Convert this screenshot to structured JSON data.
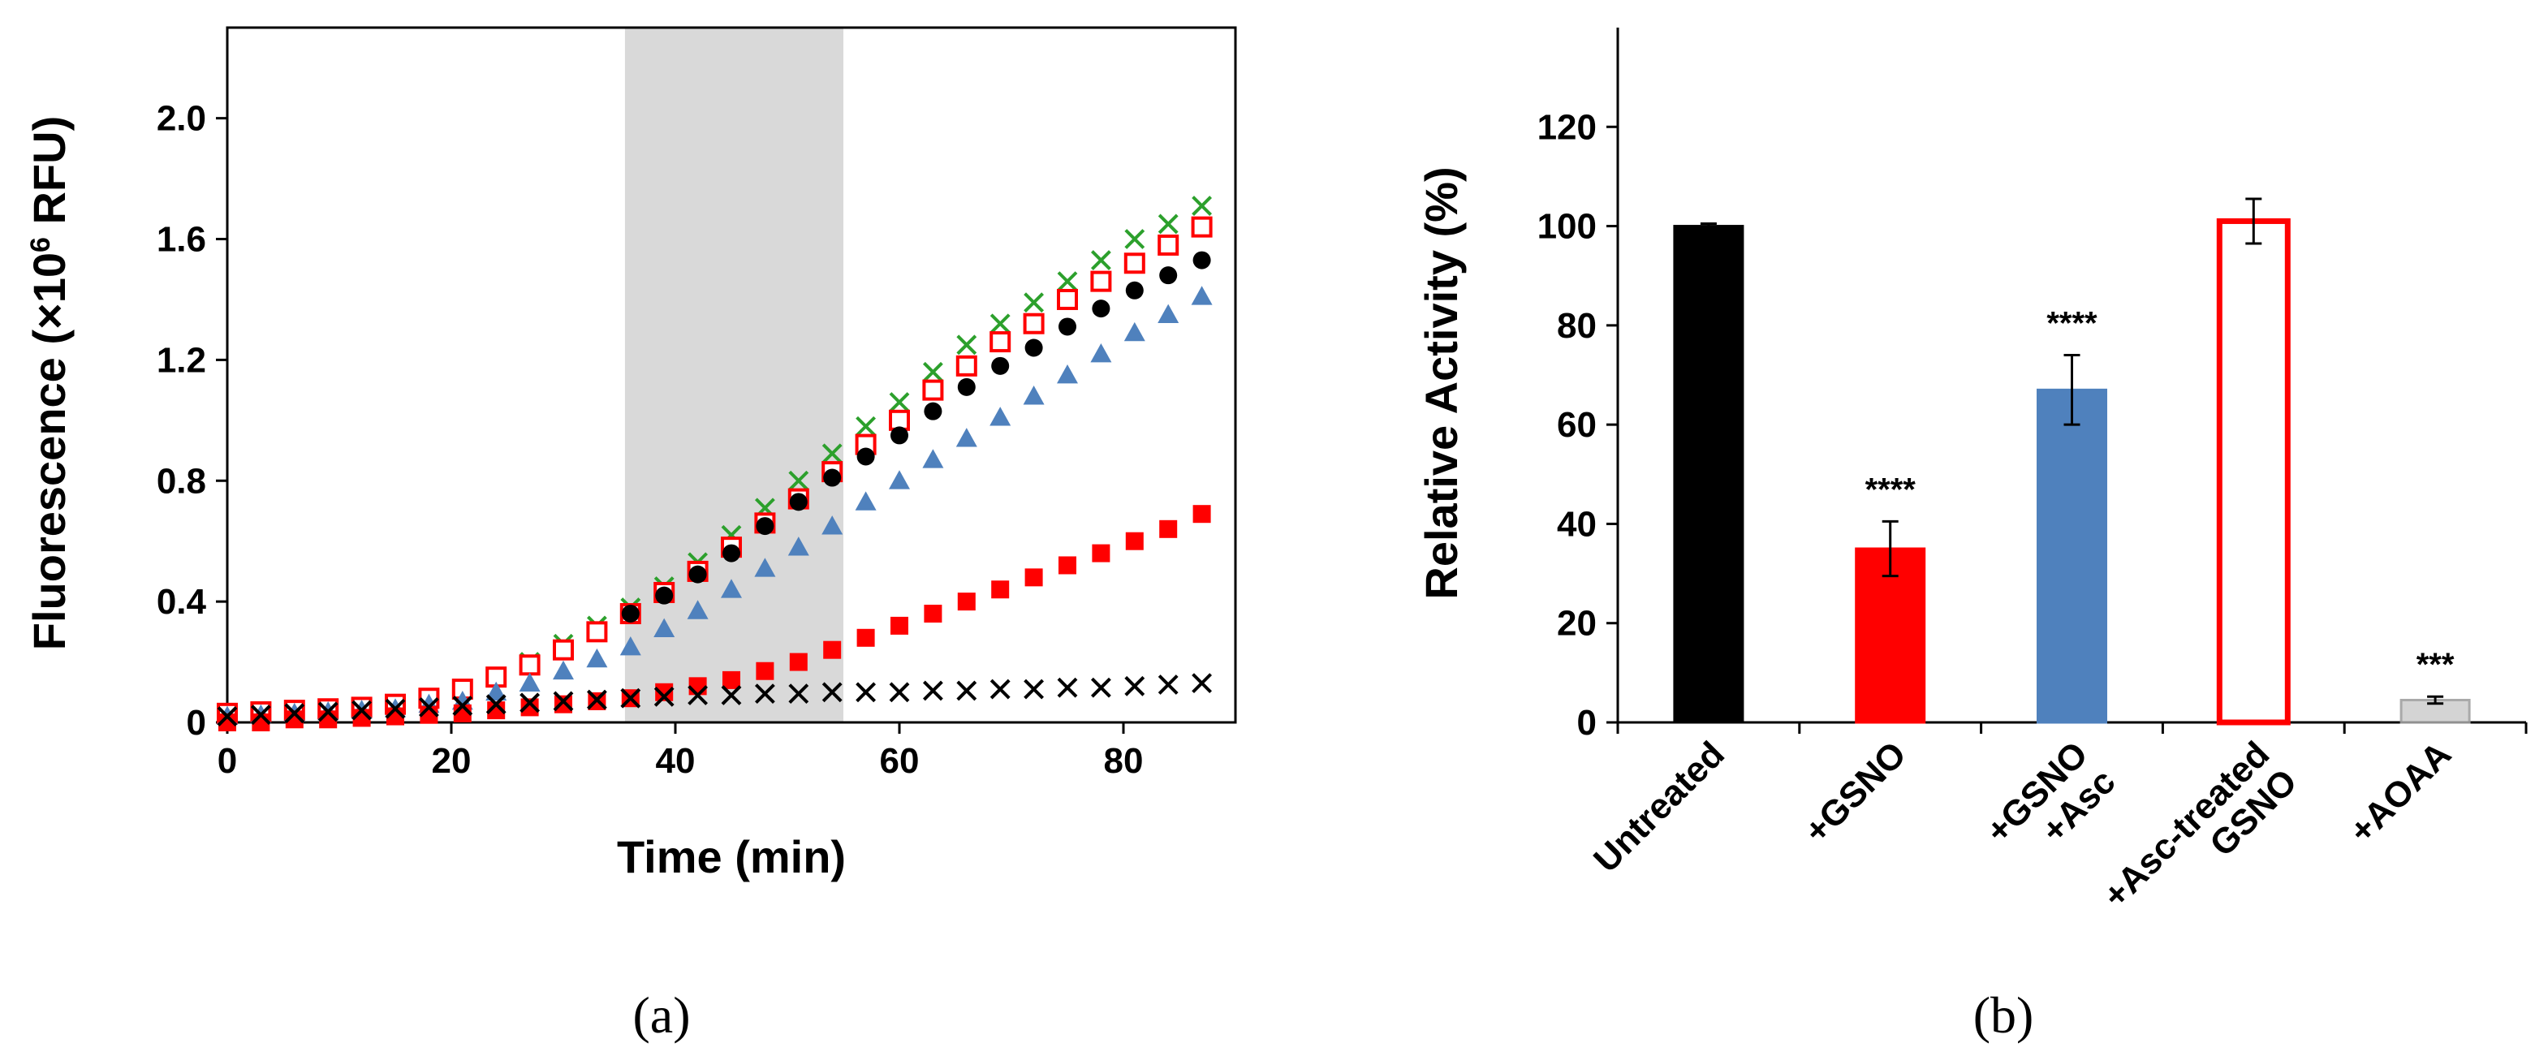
{
  "chart_data": [
    {
      "type": "scatter",
      "panel": "(a)",
      "xlabel": "Time (min)",
      "ylabel_pre": "Fluorescence (×10",
      "ylabel_sup": "6",
      "ylabel_post": " RFU)",
      "xlim": [
        0,
        90
      ],
      "ylim": [
        0,
        2.3
      ],
      "xticks": [
        "0",
        "20",
        "40",
        "60",
        "80"
      ],
      "yticks": [
        "0",
        "0.4",
        "0.8",
        "1.2",
        "1.6",
        "2.0"
      ],
      "shaded_region": [
        35.5,
        55
      ],
      "series": [
        {
          "marker": "x",
          "color": "#2ca02c",
          "x": [
            0,
            3,
            6,
            9,
            12,
            15,
            18,
            21,
            24,
            27,
            30,
            33,
            36,
            39,
            42,
            45,
            48,
            51,
            54,
            57,
            60,
            63,
            66,
            69,
            72,
            75,
            78,
            81,
            84,
            87
          ],
          "y": [
            0.03,
            0.035,
            0.04,
            0.045,
            0.05,
            0.06,
            0.08,
            0.11,
            0.15,
            0.2,
            0.26,
            0.32,
            0.38,
            0.45,
            0.53,
            0.62,
            0.71,
            0.8,
            0.89,
            0.98,
            1.06,
            1.16,
            1.25,
            1.32,
            1.39,
            1.46,
            1.53,
            1.6,
            1.65,
            1.71
          ]
        },
        {
          "marker": "open-square",
          "color": "#ff0000",
          "x": [
            0,
            3,
            6,
            9,
            12,
            15,
            18,
            21,
            24,
            27,
            30,
            33,
            36,
            39,
            42,
            45,
            48,
            51,
            54,
            57,
            60,
            63,
            66,
            69,
            72,
            75,
            78,
            81,
            84,
            87
          ],
          "y": [
            0.03,
            0.035,
            0.04,
            0.045,
            0.05,
            0.06,
            0.08,
            0.11,
            0.15,
            0.19,
            0.24,
            0.3,
            0.36,
            0.43,
            0.5,
            0.58,
            0.66,
            0.74,
            0.83,
            0.92,
            1.0,
            1.1,
            1.18,
            1.26,
            1.32,
            1.4,
            1.46,
            1.52,
            1.58,
            1.64
          ]
        },
        {
          "marker": "circle",
          "color": "#000000",
          "x": [
            36,
            39,
            42,
            45,
            48,
            51,
            54,
            57,
            60,
            63,
            66,
            69,
            72,
            75,
            78,
            81,
            84,
            87
          ],
          "y": [
            0.36,
            0.42,
            0.49,
            0.56,
            0.65,
            0.73,
            0.81,
            0.88,
            0.95,
            1.03,
            1.11,
            1.18,
            1.24,
            1.31,
            1.37,
            1.43,
            1.48,
            1.53
          ]
        },
        {
          "marker": "triangle",
          "color": "#4f81bd",
          "x": [
            0,
            3,
            6,
            9,
            12,
            15,
            18,
            21,
            24,
            27,
            30,
            33,
            36,
            39,
            42,
            45,
            48,
            51,
            54,
            57,
            60,
            63,
            66,
            69,
            72,
            75,
            78,
            81,
            84,
            87
          ],
          "y": [
            0.02,
            0.025,
            0.03,
            0.035,
            0.04,
            0.045,
            0.06,
            0.07,
            0.1,
            0.13,
            0.17,
            0.21,
            0.25,
            0.31,
            0.37,
            0.44,
            0.51,
            0.58,
            0.65,
            0.73,
            0.8,
            0.87,
            0.94,
            1.01,
            1.08,
            1.15,
            1.22,
            1.29,
            1.35,
            1.41
          ]
        },
        {
          "marker": "filled-square",
          "color": "#ff0000",
          "x": [
            0,
            3,
            6,
            9,
            12,
            15,
            18,
            21,
            24,
            27,
            30,
            33,
            36,
            39,
            42,
            45,
            48,
            51,
            54,
            57,
            60,
            63,
            66,
            69,
            72,
            75,
            78,
            81,
            84,
            87
          ],
          "y": [
            0.0,
            0.0,
            0.01,
            0.01,
            0.015,
            0.02,
            0.025,
            0.03,
            0.04,
            0.05,
            0.06,
            0.07,
            0.08,
            0.1,
            0.12,
            0.14,
            0.17,
            0.2,
            0.24,
            0.28,
            0.32,
            0.36,
            0.4,
            0.44,
            0.48,
            0.52,
            0.56,
            0.6,
            0.64,
            0.69
          ]
        },
        {
          "marker": "x",
          "color": "#000000",
          "x": [
            0,
            3,
            6,
            9,
            12,
            15,
            18,
            21,
            24,
            27,
            30,
            33,
            36,
            39,
            42,
            45,
            48,
            51,
            54,
            57,
            60,
            63,
            66,
            69,
            72,
            75,
            78,
            81,
            84,
            87
          ],
          "y": [
            0.02,
            0.025,
            0.03,
            0.035,
            0.04,
            0.045,
            0.05,
            0.055,
            0.06,
            0.065,
            0.07,
            0.075,
            0.08,
            0.085,
            0.09,
            0.09,
            0.095,
            0.095,
            0.1,
            0.1,
            0.1,
            0.105,
            0.105,
            0.11,
            0.11,
            0.115,
            0.115,
            0.12,
            0.125,
            0.13
          ]
        }
      ]
    },
    {
      "type": "bar",
      "panel": "(b)",
      "ylabel": "Relative Activity (%)",
      "ylim": [
        0,
        140
      ],
      "yticks": [
        "0",
        "20",
        "40",
        "60",
        "80",
        "100",
        "120"
      ],
      "categories": [
        "Untreated",
        "+GSNO",
        "+GSNO\n+Asc",
        "+Asc-treated\nGSNO",
        "+AOAA"
      ],
      "values": [
        100,
        35,
        67,
        101,
        4.5
      ],
      "errors": [
        0.5,
        5.5,
        7,
        4.5,
        0.7
      ],
      "significance": [
        "",
        "****",
        "****",
        "",
        "***"
      ],
      "fills": [
        "#000000",
        "#ff0000",
        "#4f81bd",
        "#ffffff",
        "#d0d0d0"
      ],
      "strokes": [
        "#000000",
        "#ff0000",
        "#4f81bd",
        "#ff0000",
        "#a0a0a0"
      ]
    }
  ]
}
